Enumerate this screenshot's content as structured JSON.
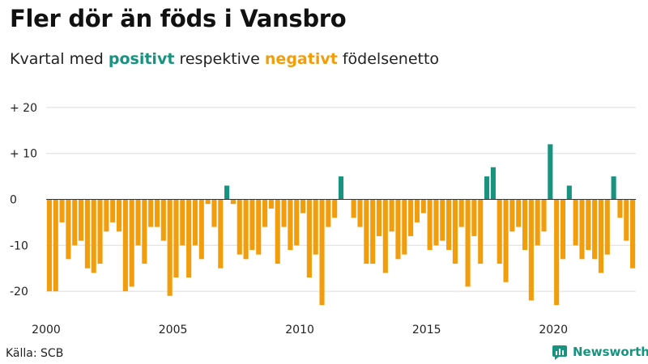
{
  "header": {
    "title": "Fler dör än föds i Vansbro",
    "subtitle_before": "Kvartal med ",
    "subtitle_positive": "positivt",
    "subtitle_middle": " respektive ",
    "subtitle_negative": "negativt",
    "subtitle_after": " födelsenetto"
  },
  "footer": {
    "source": "Källa: SCB",
    "brand": "Newsworthy"
  },
  "colors": {
    "positive": "#17937f",
    "negative": "#f29d0c",
    "grid": "#dddddd",
    "zero_line": "#333333"
  },
  "chart_data": {
    "type": "bar",
    "title": "Fler dör än föds i Vansbro",
    "xlabel": "",
    "ylabel": "",
    "ylim": [
      -25,
      22
    ],
    "grid": true,
    "legend": "none",
    "x_start": "2000 Q1",
    "frequency": "quarterly",
    "y_ticks": [
      {
        "value": 20,
        "label": "+ 20"
      },
      {
        "value": 10,
        "label": "+ 10"
      },
      {
        "value": 0,
        "label": "0"
      },
      {
        "value": -10,
        "label": "-10"
      },
      {
        "value": -20,
        "label": "-20"
      }
    ],
    "x_ticks": [
      {
        "year": 2000,
        "label": "2000"
      },
      {
        "year": 2005,
        "label": "2005"
      },
      {
        "year": 2010,
        "label": "2010"
      },
      {
        "year": 2015,
        "label": "2015"
      },
      {
        "year": 2020,
        "label": "2020"
      }
    ],
    "values": [
      -20,
      -20,
      -5,
      -13,
      -10,
      -9,
      -15,
      -16,
      -14,
      -7,
      -5,
      -7,
      -20,
      -19,
      -10,
      -14,
      -6,
      -6,
      -9,
      -21,
      -17,
      -10,
      -17,
      -10,
      -13,
      -1,
      -6,
      -15,
      3,
      -1,
      -12,
      -13,
      -11,
      -12,
      -6,
      -2,
      -14,
      -6,
      -11,
      -10,
      -3,
      -17,
      -12,
      -23,
      -6,
      -4,
      5,
      0,
      -4,
      -6,
      -14,
      -14,
      -8,
      -16,
      -7,
      -13,
      -12,
      -8,
      -5,
      -3,
      -11,
      -10,
      -9,
      -11,
      -14,
      -6,
      -19,
      -8,
      -14,
      5,
      7,
      -14,
      -18,
      -7,
      -6,
      -11,
      -22,
      -10,
      -7,
      12,
      -23,
      -13,
      3,
      -10,
      -13,
      -11,
      -13,
      -16,
      -12,
      5,
      -4,
      -9,
      -15
    ]
  }
}
